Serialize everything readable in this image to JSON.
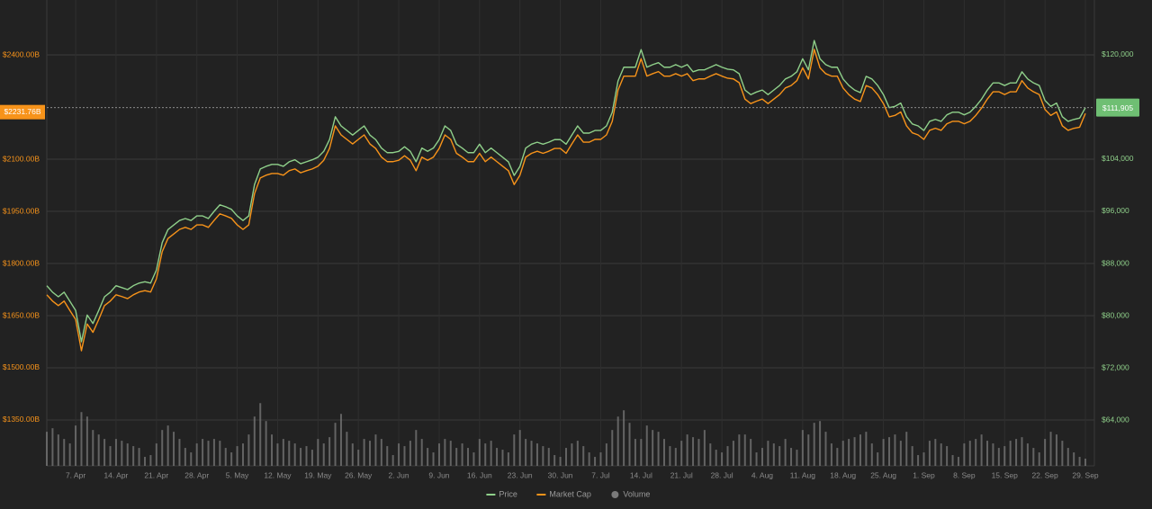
{
  "chart_data": {
    "type": "line",
    "categories": [
      null,
      null,
      null,
      null,
      null,
      "7. Apr",
      null,
      null,
      null,
      null,
      null,
      null,
      "14. Apr",
      null,
      null,
      null,
      null,
      null,
      null,
      "21. Apr",
      null,
      null,
      null,
      null,
      null,
      null,
      "28. Apr",
      null,
      null,
      null,
      null,
      null,
      null,
      "5. May",
      null,
      null,
      null,
      null,
      null,
      null,
      "12. May",
      null,
      null,
      null,
      null,
      null,
      null,
      "19. May",
      null,
      null,
      null,
      null,
      null,
      null,
      "26. May",
      null,
      null,
      null,
      null,
      null,
      null,
      "2. Jun",
      null,
      null,
      null,
      null,
      null,
      null,
      "9. Jun",
      null,
      null,
      null,
      null,
      null,
      null,
      "16. Jun",
      null,
      null,
      null,
      null,
      null,
      null,
      "23. Jun",
      null,
      null,
      null,
      null,
      null,
      null,
      "30. Jun",
      null,
      null,
      null,
      null,
      null,
      null,
      "7. Jul",
      null,
      null,
      null,
      null,
      null,
      null,
      "14. Jul",
      null,
      null,
      null,
      null,
      null,
      null,
      "21. Jul",
      null,
      null,
      null,
      null,
      null,
      null,
      "28. Jul",
      null,
      null,
      null,
      null,
      null,
      null,
      "4. Aug",
      null,
      null,
      null,
      null,
      null,
      null,
      "11. Aug",
      null,
      null,
      null,
      null,
      null,
      null,
      "18. Aug",
      null,
      null,
      null,
      null,
      null,
      null,
      "25. Aug",
      null,
      null,
      null,
      null,
      null,
      null,
      "1. Sep",
      null,
      null,
      null,
      null,
      null,
      null,
      "8. Sep",
      null,
      null,
      null,
      null,
      null,
      null,
      "15. Sep",
      null,
      null,
      null,
      null,
      null,
      null,
      "22. Sep",
      null,
      null,
      null,
      null,
      null,
      null,
      "29. Sep"
    ],
    "series": [
      {
        "name": "Price",
        "color": "#8fd08a",
        "axis": "y2",
        "type": "line",
        "values": [
          84600,
          83600,
          82900,
          83600,
          82200,
          80800,
          76000,
          80100,
          78800,
          80800,
          82900,
          83600,
          84600,
          84300,
          84000,
          84600,
          85000,
          85200,
          85000,
          87000,
          91200,
          93200,
          93900,
          94600,
          94900,
          94600,
          95300,
          95300,
          94900,
          96000,
          97000,
          96700,
          96300,
          95300,
          94600,
          95300,
          100100,
          102500,
          102900,
          103200,
          103200,
          102900,
          103600,
          103900,
          103300,
          103600,
          103900,
          104300,
          105200,
          107000,
          110500,
          109100,
          108400,
          107700,
          108400,
          109100,
          107700,
          107000,
          105700,
          105000,
          105000,
          105200,
          105900,
          105200,
          103600,
          105700,
          105200,
          105700,
          107000,
          109100,
          108400,
          106300,
          105700,
          105000,
          105000,
          106300,
          105000,
          105700,
          105000,
          104300,
          103600,
          101500,
          102900,
          105700,
          106300,
          106600,
          106300,
          106600,
          107000,
          107000,
          106300,
          107700,
          109100,
          108000,
          108000,
          108400,
          108400,
          109100,
          111200,
          116000,
          118100,
          118100,
          118100,
          120800,
          118100,
          118500,
          118800,
          118100,
          118100,
          118500,
          118100,
          118500,
          117400,
          117700,
          117700,
          118100,
          118500,
          118100,
          117800,
          117700,
          117100,
          114600,
          113900,
          114300,
          114600,
          113900,
          114600,
          115300,
          116300,
          116700,
          117400,
          119400,
          117700,
          122200,
          119400,
          118500,
          118100,
          118100,
          116300,
          115300,
          114600,
          114200,
          116700,
          116300,
          115300,
          113900,
          111900,
          112100,
          112600,
          110500,
          109400,
          109100,
          108400,
          109800,
          110100,
          109800,
          110800,
          111200,
          111200,
          110800,
          111200,
          112100,
          113200,
          114600,
          115700,
          115700,
          115300,
          115700,
          115700,
          117400,
          116300,
          115700,
          115300,
          113000,
          112100,
          112600,
          110500,
          109800,
          110100,
          110300,
          111905
        ]
      },
      {
        "name": "Market Cap",
        "color": "#f7931a",
        "axis": "y",
        "type": "line",
        "values": [
          1710,
          1692,
          1679,
          1692,
          1665,
          1639,
          1549,
          1626,
          1602,
          1639,
          1679,
          1692,
          1710,
          1705,
          1699,
          1710,
          1718,
          1722,
          1718,
          1756,
          1834,
          1872,
          1885,
          1898,
          1904,
          1898,
          1911,
          1911,
          1904,
          1924,
          1943,
          1937,
          1930,
          1911,
          1898,
          1911,
          2001,
          2046,
          2054,
          2059,
          2059,
          2054,
          2067,
          2072,
          2061,
          2067,
          2072,
          2080,
          2097,
          2131,
          2196,
          2170,
          2157,
          2144,
          2157,
          2170,
          2144,
          2131,
          2106,
          2093,
          2093,
          2097,
          2110,
          2097,
          2067,
          2106,
          2097,
          2106,
          2131,
          2170,
          2157,
          2117,
          2106,
          2093,
          2093,
          2117,
          2093,
          2106,
          2093,
          2080,
          2067,
          2027,
          2054,
          2106,
          2117,
          2123,
          2117,
          2123,
          2131,
          2131,
          2117,
          2144,
          2170,
          2149,
          2149,
          2157,
          2157,
          2170,
          2209,
          2299,
          2339,
          2339,
          2339,
          2389,
          2339,
          2346,
          2352,
          2339,
          2339,
          2346,
          2339,
          2346,
          2326,
          2331,
          2331,
          2339,
          2346,
          2339,
          2333,
          2331,
          2320,
          2273,
          2260,
          2267,
          2273,
          2260,
          2273,
          2286,
          2305,
          2312,
          2326,
          2363,
          2331,
          2416,
          2363,
          2346,
          2339,
          2339,
          2305,
          2286,
          2273,
          2266,
          2312,
          2305,
          2286,
          2260,
          2222,
          2226,
          2236,
          2196,
          2176,
          2170,
          2157,
          2183,
          2189,
          2183,
          2202,
          2209,
          2209,
          2202,
          2209,
          2226,
          2247,
          2273,
          2294,
          2294,
          2286,
          2294,
          2294,
          2326,
          2305,
          2294,
          2286,
          2243,
          2226,
          2236,
          2196,
          2183,
          2189,
          2192,
          2231.76
        ]
      },
      {
        "name": "Volume",
        "color": "#7a7a7a",
        "axis": "y3",
        "type": "bar",
        "values": [
          38,
          42,
          35,
          30,
          25,
          45,
          60,
          55,
          40,
          35,
          30,
          22,
          30,
          28,
          25,
          22,
          20,
          10,
          12,
          25,
          40,
          45,
          38,
          30,
          20,
          15,
          25,
          30,
          28,
          30,
          28,
          20,
          15,
          22,
          25,
          35,
          55,
          70,
          50,
          35,
          25,
          30,
          28,
          25,
          20,
          22,
          18,
          30,
          25,
          32,
          48,
          58,
          38,
          25,
          18,
          30,
          28,
          35,
          30,
          22,
          12,
          25,
          22,
          28,
          40,
          30,
          20,
          15,
          25,
          30,
          28,
          20,
          25,
          20,
          15,
          30,
          25,
          28,
          20,
          18,
          15,
          35,
          40,
          30,
          28,
          25,
          22,
          20,
          12,
          10,
          20,
          25,
          28,
          22,
          15,
          10,
          15,
          25,
          40,
          55,
          62,
          48,
          30,
          30,
          45,
          40,
          38,
          30,
          22,
          20,
          28,
          35,
          32,
          30,
          40,
          25,
          18,
          15,
          22,
          28,
          35,
          35,
          30,
          15,
          20,
          28,
          25,
          22,
          30,
          20,
          18,
          40,
          35,
          48,
          50,
          38,
          25,
          20,
          28,
          30,
          32,
          35,
          38,
          25,
          15,
          30,
          32,
          35,
          28,
          38,
          22,
          12,
          15,
          28,
          30,
          25,
          22,
          12,
          10,
          25,
          28,
          30,
          35,
          28,
          25,
          20,
          22,
          28,
          30,
          32,
          25,
          20,
          15,
          30,
          38,
          35,
          28,
          20,
          15,
          10,
          8
        ]
      }
    ],
    "ylim": [
      1218,
      2558
    ],
    "yticks": [
      {
        "value": 1350,
        "label": "$1350.00B"
      },
      {
        "value": 1500,
        "label": "$1500.00B"
      },
      {
        "value": 1650,
        "label": "$1650.00B"
      },
      {
        "value": 1800,
        "label": "$1800.00B"
      },
      {
        "value": 1950,
        "label": "$1950.00B"
      },
      {
        "value": 2100,
        "label": "$2100.00B"
      },
      {
        "value": 2400,
        "label": "$2400.00B"
      }
    ],
    "y2lim": [
      56970,
      128410
    ],
    "y2ticks": [
      {
        "value": 64000,
        "label": "$64,000"
      },
      {
        "value": 72000,
        "label": "$72,000"
      },
      {
        "value": 80000,
        "label": "$80,000"
      },
      {
        "value": 88000,
        "label": "$88,000"
      },
      {
        "value": 96000,
        "label": "$96,000"
      },
      {
        "value": 104000,
        "label": "$104,000"
      },
      {
        "value": 120000,
        "label": "$120,000"
      }
    ],
    "y3lim": [
      0,
      520
    ],
    "price_tag": "$111,905",
    "market_cap_tag": "$2231.76B",
    "grid": true,
    "legend": "bottom"
  }
}
